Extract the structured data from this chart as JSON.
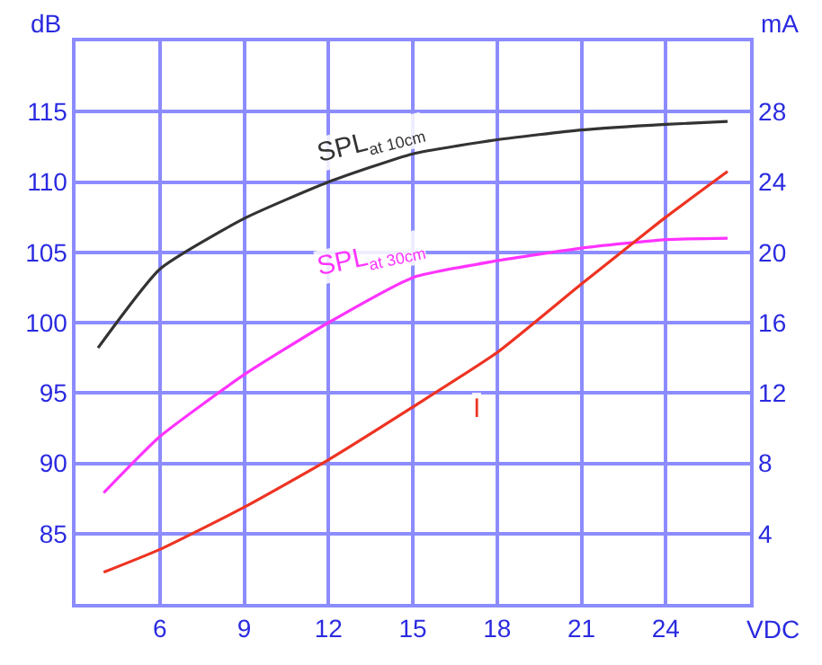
{
  "chart_data": {
    "type": "line",
    "xlabel": "VDC",
    "ylabel": "dB",
    "y2label": "mA",
    "xlim": [
      3,
      27
    ],
    "xticks": [
      6,
      9,
      12,
      15,
      18,
      21,
      24
    ],
    "ylim": [
      80,
      120
    ],
    "yticks": [
      85,
      90,
      95,
      100,
      105,
      110,
      115
    ],
    "y2lim": [
      0,
      32
    ],
    "y2ticks": [
      4,
      8,
      12,
      16,
      20,
      24,
      28
    ],
    "grid": true,
    "legend": false,
    "marker": "none",
    "line_style": "solid",
    "series": [
      {
        "name": "SPL$_{at 10cm}$",
        "color": "#333333",
        "x": [
          3.8,
          6,
          9,
          12,
          15,
          18,
          21,
          24,
          26.2
        ],
        "values": [
          98.2,
          103.8,
          107.4,
          110.0,
          112.0,
          113.0,
          113.7,
          114.1,
          114.3
        ]
      },
      {
        "name": "SPL$_{at 30cm}$",
        "color": "#ff33ff",
        "x": [
          4,
          6,
          9,
          12,
          15,
          18,
          21,
          24,
          26.2
        ],
        "values": [
          87.9,
          91.9,
          96.3,
          100.0,
          103.2,
          104.4,
          105.3,
          105.9,
          106.0
        ]
      },
      {
        "name": "I",
        "color": "#ee3322",
        "axis": "y2",
        "x": [
          4,
          6,
          9,
          12,
          15,
          18,
          21,
          22.5,
          24,
          26.2
        ],
        "values": [
          1.8,
          3.1,
          5.5,
          8.2,
          11.2,
          14.3,
          18.2,
          20.1,
          22.0,
          24.6
        ]
      }
    ]
  }
}
